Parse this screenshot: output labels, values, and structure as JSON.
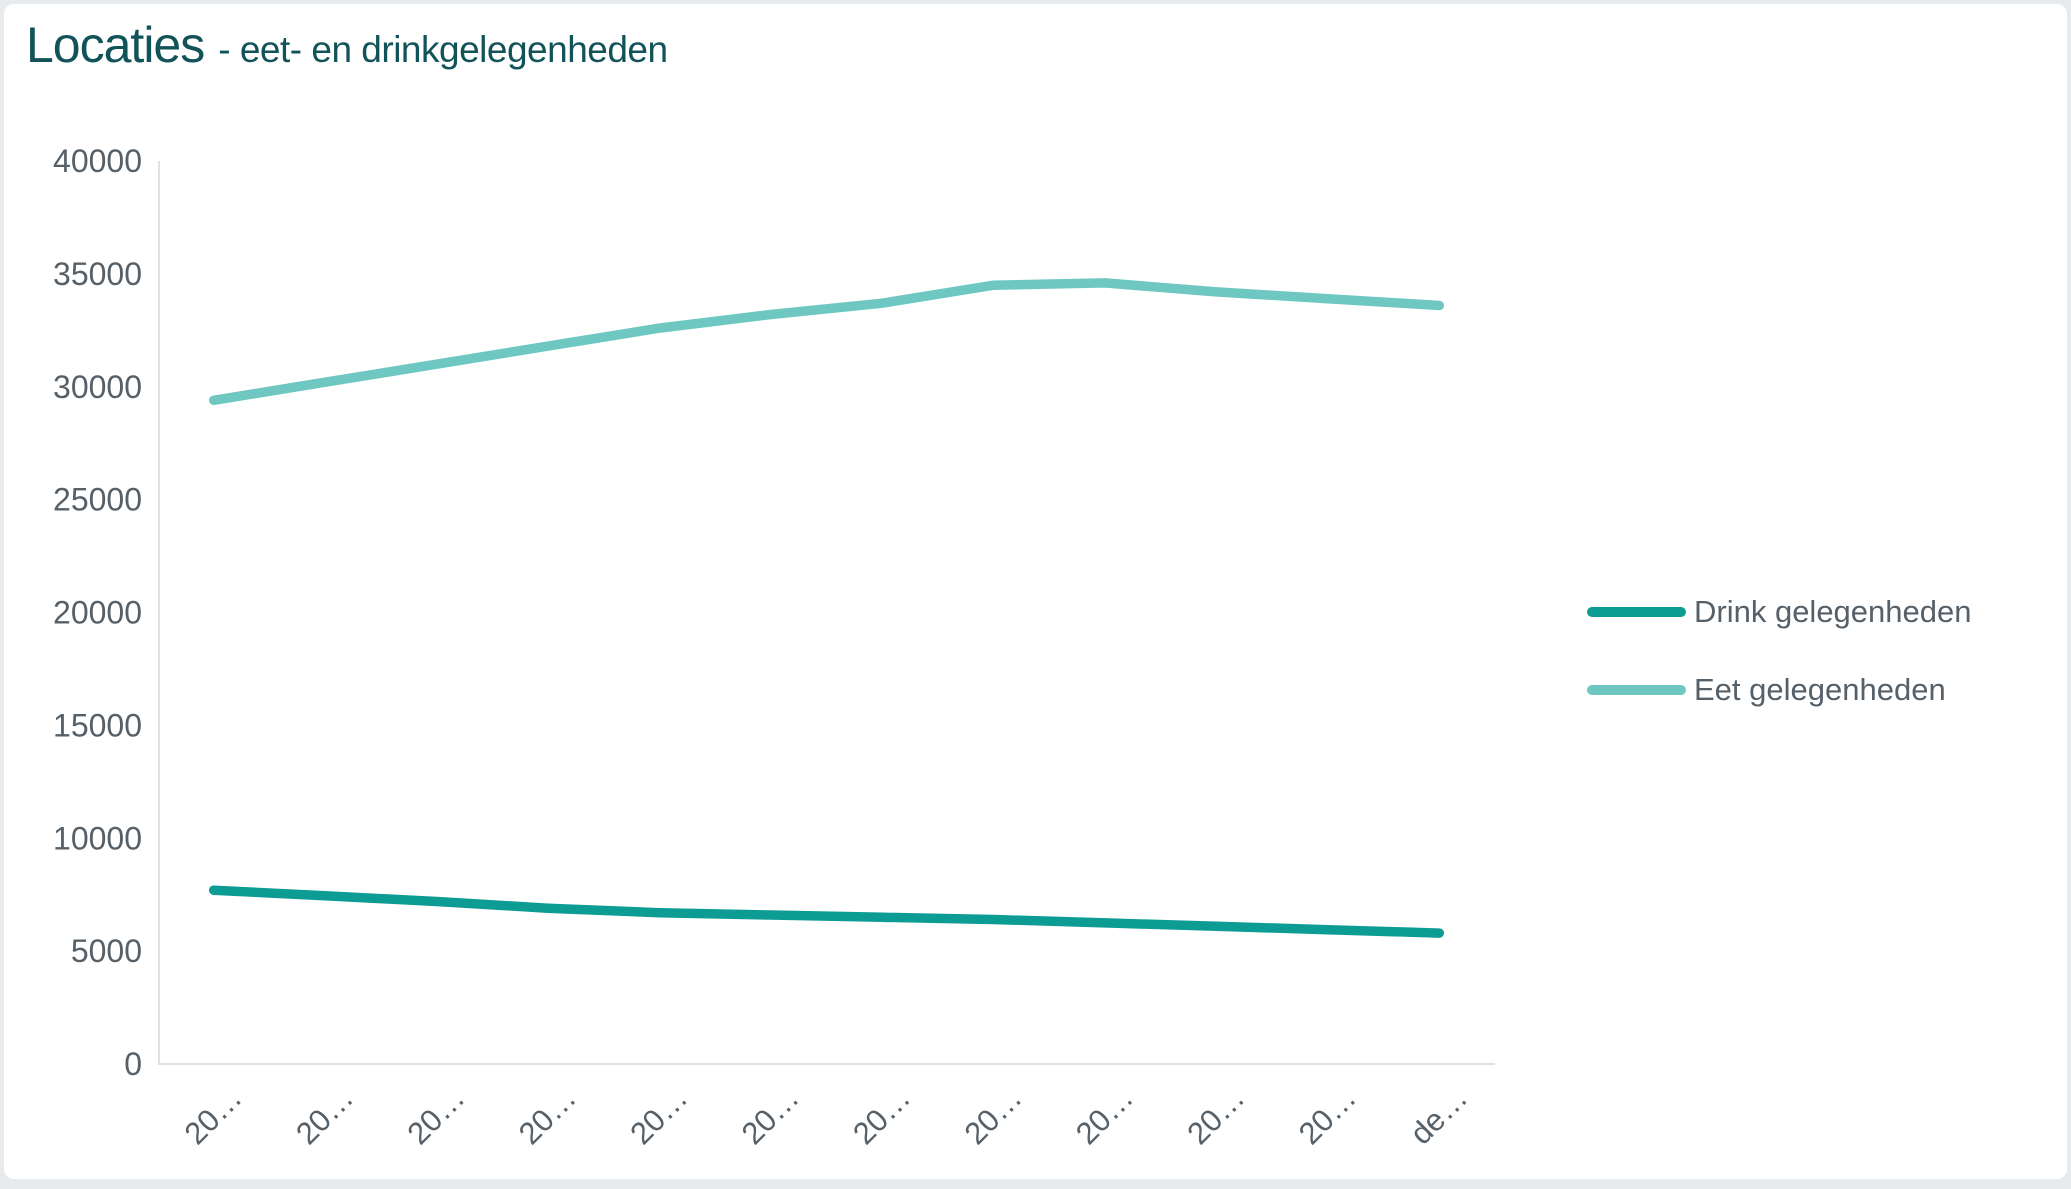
{
  "header": {
    "title": "Locaties",
    "subtitle": "- eet- en drinkgelegenheden"
  },
  "colors": {
    "title_text": "#115359",
    "axis_label": "#566069",
    "legend_text": "#566069",
    "axis_line": "#dfe2e5",
    "card_background": "#ffffff",
    "page_margin": "#e8ebed",
    "series_drink": "#0c9c94",
    "series_eet": "#6ec8c1"
  },
  "chart_data": {
    "type": "line",
    "title": "Locaties - eet- en drinkgelegenheden",
    "xlabel": "",
    "ylabel": "",
    "ylim": [
      0,
      40000
    ],
    "y_ticks": [
      0,
      5000,
      10000,
      15000,
      20000,
      25000,
      30000,
      35000,
      40000
    ],
    "x_tick_labels_display": [
      "20…",
      "20…",
      "20…",
      "20…",
      "20…",
      "20…",
      "20…",
      "20…",
      "20…",
      "20…",
      "20…",
      "de…"
    ],
    "grid": false,
    "legend_position": "right-center",
    "series": [
      {
        "name": "Drink gelegenheden",
        "color": "#0c9c94",
        "values": [
          7700,
          7450,
          7200,
          6900,
          6700,
          6600,
          6500,
          6400,
          6250,
          6100,
          5950,
          5800
        ]
      },
      {
        "name": "Eet gelegenheden",
        "color": "#6ec8c1",
        "values": [
          29400,
          30200,
          31000,
          31800,
          32600,
          33200,
          33700,
          34500,
          34600,
          34200,
          33900,
          33600
        ]
      }
    ]
  }
}
